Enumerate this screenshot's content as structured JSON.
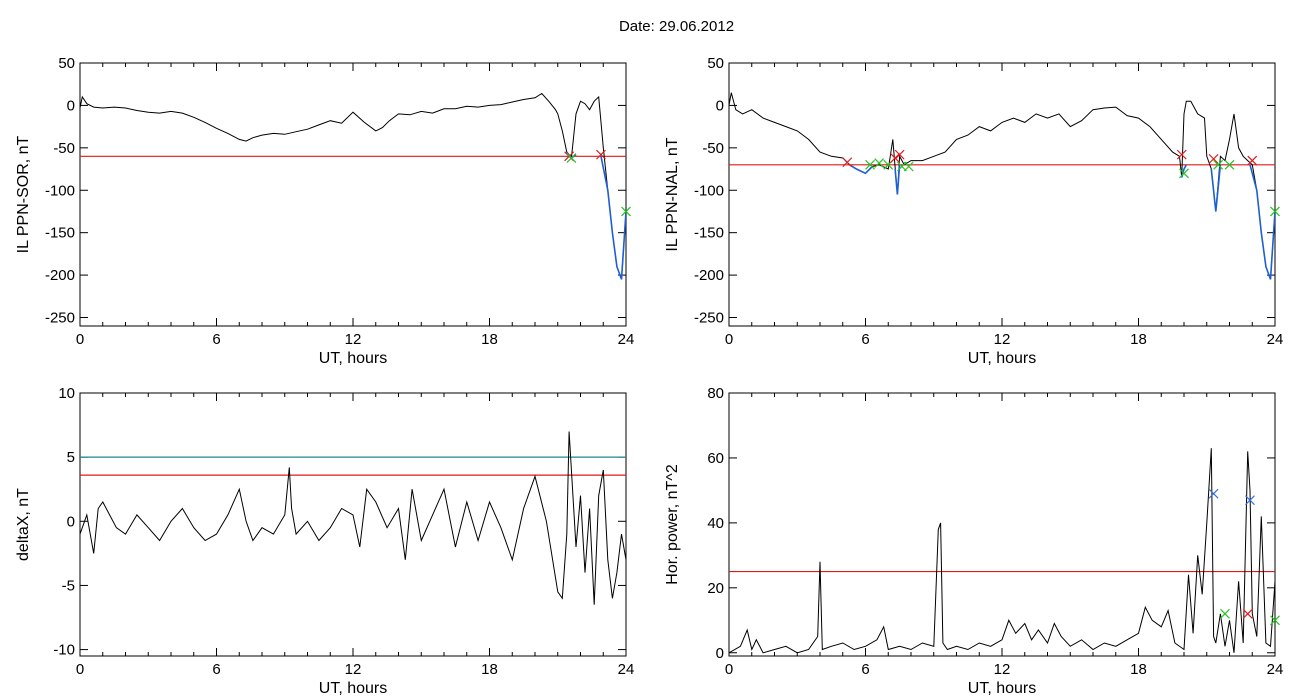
{
  "title": "Date:  29.06.2012",
  "colors": {
    "trace": "#000000",
    "threshold": "#e0181c",
    "teal_threshold": "#1e8c8c",
    "segment": "#1f5fd6",
    "marker_red": "#e0181c",
    "marker_green": "#22c422",
    "marker_blue": "#3a6fd8"
  },
  "chart_data": [
    {
      "id": "p1",
      "type": "line",
      "xlabel": "UT, hours",
      "ylabel": "IL PPN-SOR, nT",
      "xlim": [
        0,
        24
      ],
      "ylim": [
        -260,
        50
      ],
      "xticks": [
        0,
        6,
        12,
        18,
        24
      ],
      "yticks": [
        50,
        0,
        -50,
        -100,
        -150,
        -200,
        -250
      ],
      "series": [
        {
          "x": [
            0,
            0.1,
            0.3,
            0.6,
            1,
            1.5,
            2,
            2.5,
            3,
            3.5,
            4,
            4.5,
            5,
            5.5,
            6,
            6.5,
            7,
            7.3,
            7.6,
            8,
            8.5,
            9,
            9.5,
            10,
            10.5,
            11,
            11.5,
            12,
            12.5,
            13,
            13.3,
            13.6,
            14,
            14.5,
            15,
            15.5,
            16,
            16.5,
            17,
            17.5,
            18,
            18.5,
            19,
            19.5,
            20,
            20.3,
            20.6,
            20.9,
            21,
            21.2,
            21.4,
            21.6,
            21.8,
            22,
            22.2,
            22.4,
            22.6,
            22.8,
            23,
            23.2,
            23.4,
            23.6,
            23.8,
            24
          ],
          "y": [
            -3,
            10,
            2,
            -2,
            -3,
            -2,
            -3,
            -6,
            -8,
            -9,
            -7,
            -9,
            -14,
            -20,
            -27,
            -33,
            -40,
            -42,
            -38,
            -35,
            -33,
            -34,
            -31,
            -28,
            -23,
            -18,
            -21,
            -8,
            -20,
            -30,
            -26,
            -18,
            -10,
            -11,
            -7,
            -9,
            -4,
            -4,
            -1,
            -2,
            0,
            1,
            4,
            7,
            9,
            14,
            5,
            -5,
            -10,
            -30,
            -55,
            -62,
            -10,
            5,
            2,
            -5,
            5,
            10,
            -50,
            -100,
            -150,
            -190,
            -205,
            -125
          ]
        }
      ],
      "threshold": -60,
      "blue_segments": [
        {
          "x": [
            21.4,
            21.6,
            21.8
          ],
          "y": [
            -55,
            -62,
            -58
          ]
        },
        {
          "x": [
            22.9,
            23.2,
            23.4,
            23.6,
            23.8,
            24
          ],
          "y": [
            -60,
            -100,
            -150,
            -190,
            -205,
            -125
          ]
        }
      ],
      "markers": [
        {
          "color": "red",
          "x": 21.5,
          "y": -60
        },
        {
          "color": "green",
          "x": 21.6,
          "y": -62
        },
        {
          "color": "red",
          "x": 22.9,
          "y": -58
        },
        {
          "color": "green",
          "x": 24,
          "y": -125
        }
      ]
    },
    {
      "id": "p2",
      "type": "line",
      "xlabel": "UT, hours",
      "ylabel": "IL PPN-NAL, nT",
      "xlim": [
        0,
        24
      ],
      "ylim": [
        -260,
        50
      ],
      "xticks": [
        0,
        6,
        12,
        18,
        24
      ],
      "yticks": [
        50,
        0,
        -50,
        -100,
        -150,
        -200,
        -250
      ],
      "series": [
        {
          "x": [
            0,
            0.1,
            0.3,
            0.6,
            1,
            1.5,
            2,
            2.5,
            3,
            3.5,
            4,
            4.5,
            5,
            5.3,
            5.6,
            6,
            6.3,
            6.6,
            7,
            7.2,
            7.4,
            7.5,
            7.7,
            8,
            8.5,
            9,
            9.5,
            10,
            10.5,
            11,
            11.5,
            12,
            12.5,
            13,
            13.5,
            14,
            14.5,
            15,
            15.5,
            16,
            16.5,
            17,
            17.5,
            18,
            18.5,
            19,
            19.5,
            19.8,
            19.9,
            20,
            20.1,
            20.3,
            20.6,
            20.9,
            21,
            21.2,
            21.4,
            21.6,
            21.8,
            22,
            22.2,
            22.4,
            22.6,
            22.8,
            23,
            23.2,
            23.4,
            23.6,
            23.8,
            24
          ],
          "y": [
            0,
            15,
            -5,
            -10,
            -5,
            -15,
            -20,
            -25,
            -30,
            -40,
            -55,
            -60,
            -62,
            -70,
            -75,
            -80,
            -72,
            -70,
            -75,
            -40,
            -105,
            -60,
            -70,
            -65,
            -65,
            -60,
            -55,
            -40,
            -35,
            -25,
            -30,
            -20,
            -15,
            -20,
            -10,
            -15,
            -10,
            -25,
            -18,
            -5,
            -3,
            -2,
            -12,
            -15,
            -25,
            -40,
            -55,
            -60,
            -85,
            -10,
            5,
            5,
            -10,
            -15,
            -60,
            -75,
            -125,
            -60,
            -65,
            -40,
            -10,
            -50,
            -60,
            -65,
            -70,
            -100,
            -150,
            -190,
            -205,
            -125
          ]
        }
      ],
      "threshold": -70,
      "blue_segments": [
        {
          "x": [
            5.3,
            5.6,
            6,
            6.3
          ],
          "y": [
            -70,
            -75,
            -80,
            -72
          ]
        },
        {
          "x": [
            7.3,
            7.4,
            7.5
          ],
          "y": [
            -75,
            -105,
            -70
          ]
        },
        {
          "x": [
            19.9,
            20,
            20.1
          ],
          "y": [
            -85,
            -75,
            -70
          ]
        },
        {
          "x": [
            21.2,
            21.4,
            21.6
          ],
          "y": [
            -75,
            -125,
            -70
          ]
        },
        {
          "x": [
            22.9,
            23.2,
            23.4,
            23.6,
            23.8,
            24
          ],
          "y": [
            -70,
            -100,
            -150,
            -190,
            -205,
            -125
          ]
        }
      ],
      "markers": [
        {
          "color": "red",
          "x": 5.2,
          "y": -67
        },
        {
          "color": "green",
          "x": 6.2,
          "y": -70
        },
        {
          "color": "green",
          "x": 6.6,
          "y": -68
        },
        {
          "color": "green",
          "x": 7.0,
          "y": -70
        },
        {
          "color": "red",
          "x": 7.3,
          "y": -62
        },
        {
          "color": "red",
          "x": 7.5,
          "y": -58
        },
        {
          "color": "green",
          "x": 7.6,
          "y": -72
        },
        {
          "color": "green",
          "x": 7.9,
          "y": -72
        },
        {
          "color": "red",
          "x": 19.9,
          "y": -58
        },
        {
          "color": "green",
          "x": 20.0,
          "y": -80
        },
        {
          "color": "red",
          "x": 21.3,
          "y": -63
        },
        {
          "color": "green",
          "x": 21.5,
          "y": -70
        },
        {
          "color": "green",
          "x": 22.0,
          "y": -70
        },
        {
          "color": "red",
          "x": 23.0,
          "y": -65
        },
        {
          "color": "green",
          "x": 24,
          "y": -125
        }
      ]
    },
    {
      "id": "p3",
      "type": "line",
      "xlabel": "UT, hours",
      "ylabel": "deltaX, nT",
      "xlim": [
        0,
        24
      ],
      "ylim": [
        -10.5,
        10
      ],
      "xticks": [
        0,
        6,
        12,
        18,
        24
      ],
      "yticks": [
        10,
        5,
        0,
        -5,
        -10
      ],
      "series": [
        {
          "x": [
            0,
            0.3,
            0.6,
            0.8,
            1,
            1.3,
            1.6,
            2,
            2.5,
            3,
            3.5,
            4,
            4.5,
            5,
            5.5,
            6,
            6.5,
            7,
            7.3,
            7.6,
            8,
            8.5,
            9,
            9.2,
            9.3,
            9.5,
            10,
            10.5,
            11,
            11.5,
            12,
            12.3,
            12.6,
            13,
            13.5,
            14,
            14.3,
            14.6,
            15,
            15.5,
            16,
            16.5,
            17,
            17.5,
            18,
            18.5,
            19,
            19.5,
            20,
            20.5,
            21,
            21.2,
            21.4,
            21.5,
            21.6,
            21.8,
            22,
            22.2,
            22.4,
            22.6,
            22.8,
            23,
            23.2,
            23.4,
            23.6,
            23.8,
            24
          ],
          "y": [
            -1,
            0.5,
            -2.5,
            1,
            1.5,
            0.5,
            -0.5,
            -1,
            0.5,
            -0.5,
            -1.5,
            0,
            1,
            -0.5,
            -1.5,
            -1,
            0.5,
            2.5,
            0,
            -1.5,
            -0.5,
            -1,
            0.5,
            4.2,
            1,
            -1,
            0,
            -1.5,
            -0.5,
            1,
            0.5,
            -2,
            2.5,
            1.5,
            -0.5,
            1,
            -3,
            2.5,
            -1.5,
            0.5,
            2.5,
            -2,
            1.5,
            -1.5,
            1.5,
            -0.5,
            -3,
            1,
            3.5,
            0,
            -5.5,
            -6,
            -1,
            7,
            4,
            -2,
            2,
            -4,
            1,
            -6.5,
            2,
            4,
            -3,
            -6,
            -4,
            -1,
            -3
          ]
        }
      ],
      "threshold": 3.6,
      "threshold2": 5.0,
      "blue_segments": [],
      "markers": []
    },
    {
      "id": "p4",
      "type": "line",
      "xlabel": "UT, hours",
      "ylabel": "Hor. power, nT^2",
      "xlim": [
        0,
        24
      ],
      "ylim": [
        -1,
        80
      ],
      "xticks": [
        0,
        6,
        12,
        18,
        24
      ],
      "yticks": [
        80,
        60,
        40,
        20,
        0
      ],
      "series": [
        {
          "x": [
            0,
            0.5,
            0.8,
            1,
            1.2,
            1.5,
            2,
            2.5,
            3,
            3.5,
            3.9,
            4,
            4.1,
            4.5,
            5,
            5.5,
            6,
            6.5,
            6.8,
            7,
            7.5,
            8,
            8.5,
            9,
            9.2,
            9.3,
            9.4,
            9.6,
            10,
            10.5,
            11,
            11.5,
            12,
            12.3,
            12.6,
            13,
            13.3,
            13.6,
            14,
            14.3,
            14.6,
            15,
            15.5,
            16,
            16.5,
            17,
            17.5,
            18,
            18.3,
            18.6,
            19,
            19.3,
            19.6,
            20,
            20.2,
            20.4,
            20.6,
            20.8,
            21,
            21.2,
            21.3,
            21.4,
            21.6,
            21.8,
            22,
            22.2,
            22.4,
            22.6,
            22.8,
            22.9,
            23,
            23.2,
            23.4,
            23.6,
            23.8,
            24
          ],
          "y": [
            0,
            2,
            7,
            1,
            4,
            0,
            1,
            2,
            0,
            1,
            5,
            28,
            1,
            2,
            3,
            1,
            2,
            4,
            8,
            1,
            2,
            1,
            3,
            2,
            38,
            40,
            3,
            1,
            2,
            1,
            3,
            2,
            4,
            10,
            6,
            9,
            4,
            7,
            3,
            9,
            5,
            2,
            4,
            1,
            3,
            2,
            4,
            6,
            14,
            10,
            8,
            13,
            3,
            1,
            24,
            6,
            30,
            18,
            40,
            63,
            5,
            3,
            12,
            2,
            10,
            0,
            22,
            3,
            62,
            50,
            12,
            5,
            42,
            3,
            2,
            22
          ]
        }
      ],
      "threshold": 25,
      "blue_segments": [],
      "markers": [
        {
          "color": "blue",
          "x": 21.3,
          "y": 49
        },
        {
          "color": "green",
          "x": 21.8,
          "y": 12
        },
        {
          "color": "red",
          "x": 22.8,
          "y": 12
        },
        {
          "color": "blue",
          "x": 22.9,
          "y": 47
        },
        {
          "color": "green",
          "x": 24,
          "y": 10
        }
      ]
    }
  ]
}
